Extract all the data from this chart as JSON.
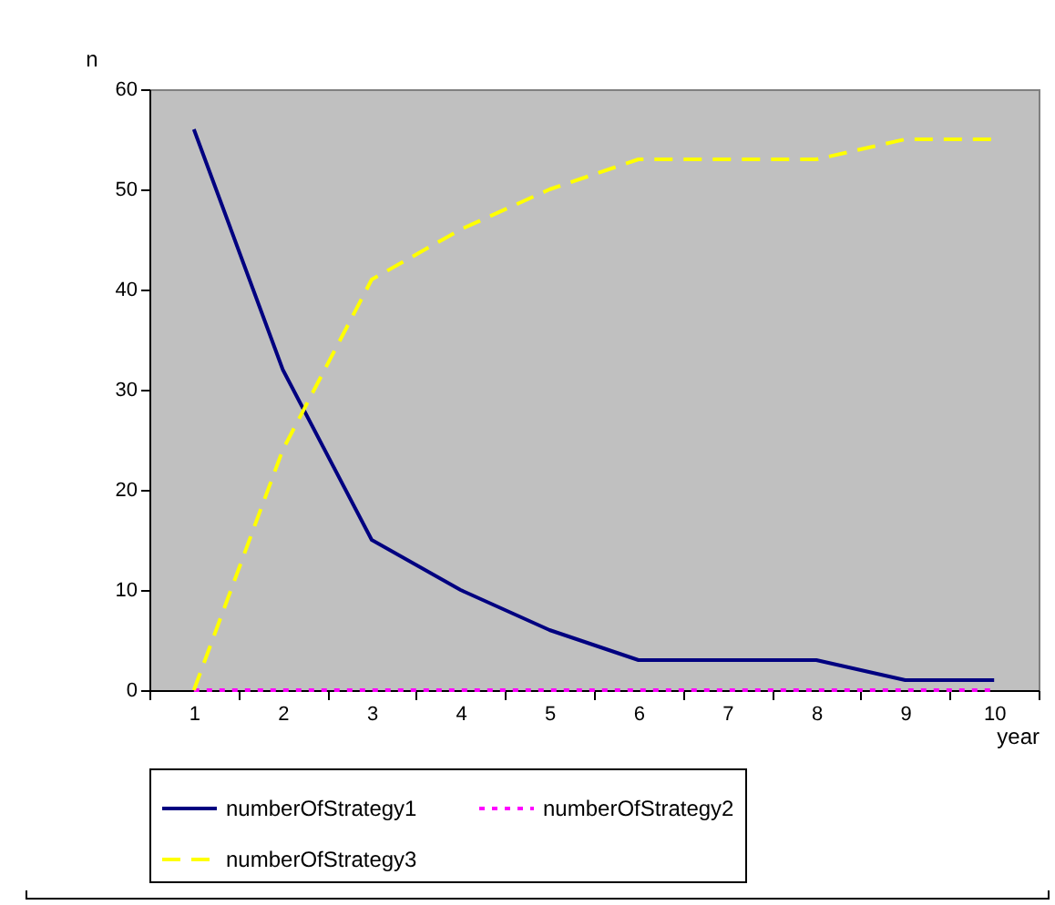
{
  "chart_data": {
    "type": "line",
    "xlabel": "year",
    "ylabel": "n",
    "categories": [
      "1",
      "2",
      "3",
      "4",
      "5",
      "6",
      "7",
      "8",
      "9",
      "10"
    ],
    "ylim": [
      0,
      60
    ],
    "yticks": [
      0,
      10,
      20,
      30,
      40,
      50,
      60
    ],
    "grid": false,
    "legend": "bottom",
    "marker": "none",
    "series": [
      {
        "name": "numberOfStrategy1",
        "color": "#000080",
        "line_style": "solid",
        "values": [
          56,
          32,
          15,
          10,
          6,
          3,
          3,
          3,
          1,
          1
        ]
      },
      {
        "name": "numberOfStrategy2",
        "color": "#ff00ff",
        "line_style": "dotted",
        "values": [
          0,
          0,
          0,
          0,
          0,
          0,
          0,
          0,
          0,
          0
        ]
      },
      {
        "name": "numberOfStrategy3",
        "color": "#ffff00",
        "line_style": "dashed",
        "values": [
          0,
          24,
          41,
          46,
          50,
          53,
          53,
          53,
          55,
          55
        ]
      }
    ]
  }
}
